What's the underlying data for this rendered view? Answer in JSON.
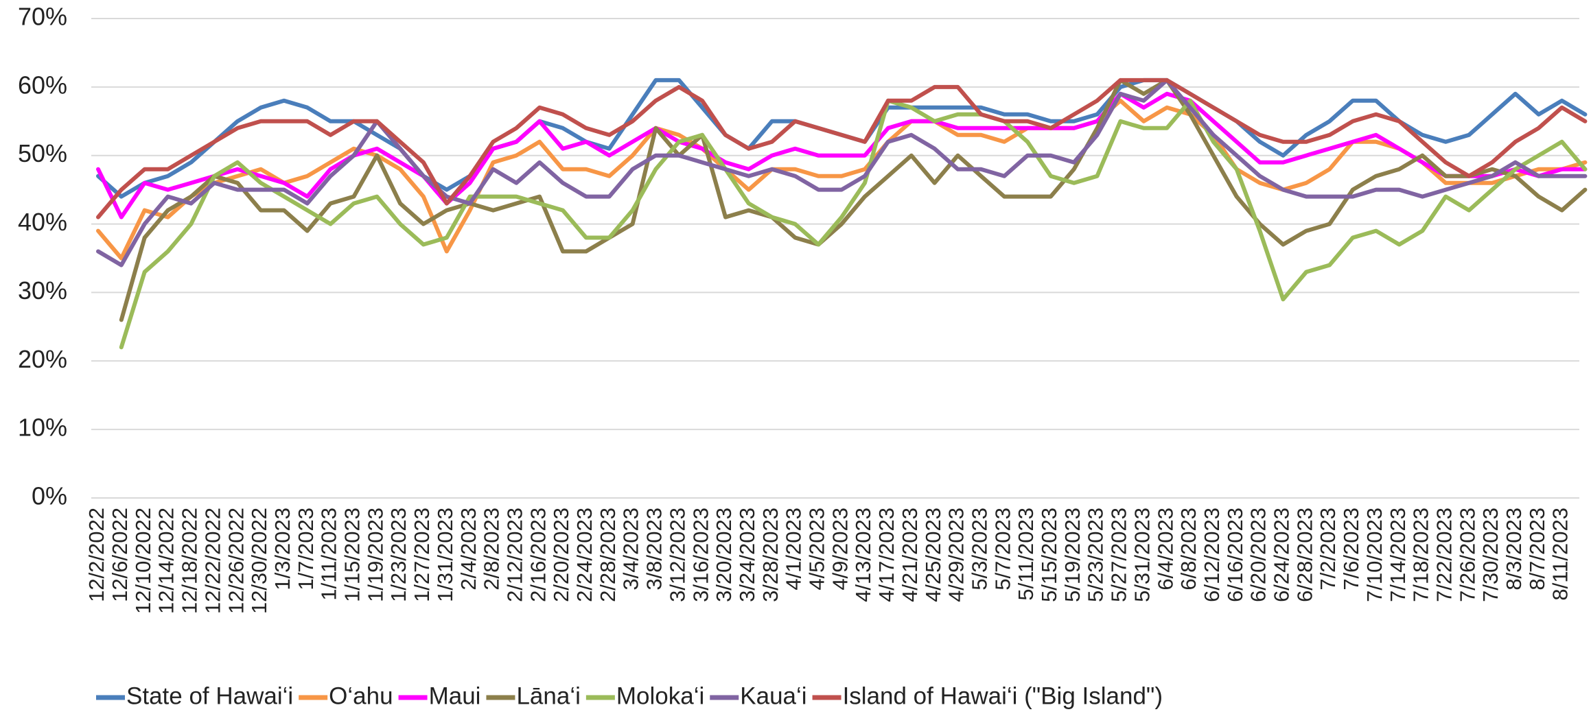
{
  "chart_data": {
    "type": "line",
    "categories": [
      "12/2/2022",
      "12/6/2022",
      "12/10/2022",
      "12/14/2022",
      "12/18/2022",
      "12/22/2022",
      "12/26/2022",
      "12/30/2022",
      "1/3/2023",
      "1/7/2023",
      "1/11/2023",
      "1/15/2023",
      "1/19/2023",
      "1/23/2023",
      "1/27/2023",
      "1/31/2023",
      "2/4/2023",
      "2/8/2023",
      "2/12/2023",
      "2/16/2023",
      "2/20/2023",
      "2/24/2023",
      "2/28/2023",
      "3/4/2023",
      "3/8/2023",
      "3/12/2023",
      "3/16/2023",
      "3/20/2023",
      "3/24/2023",
      "3/28/2023",
      "4/1/2023",
      "4/5/2023",
      "4/9/2023",
      "4/13/2023",
      "4/17/2023",
      "4/21/2023",
      "4/25/2023",
      "4/29/2023",
      "5/3/2023",
      "5/7/2023",
      "5/11/2023",
      "5/15/2023",
      "5/19/2023",
      "5/23/2023",
      "5/27/2023",
      "5/31/2023",
      "6/4/2023",
      "6/8/2023",
      "6/12/2023",
      "6/16/2023",
      "6/20/2023",
      "6/24/2023",
      "6/28/2023",
      "7/2/2023",
      "7/6/2023",
      "7/10/2023",
      "7/14/2023",
      "7/18/2023",
      "7/22/2023",
      "7/26/2023",
      "7/30/2023",
      "8/3/2023",
      "8/7/2023",
      "8/11/2023",
      null
    ],
    "series": [
      {
        "name": "State of Hawai‘i",
        "color": "#4a7ebb",
        "values": [
          47,
          44,
          46,
          47,
          49,
          52,
          55,
          57,
          58,
          57,
          55,
          55,
          53,
          51,
          47,
          45,
          47,
          51,
          52,
          55,
          54,
          52,
          51,
          56,
          61,
          61,
          57,
          53,
          51,
          55,
          55,
          54,
          53,
          52,
          57,
          57,
          57,
          57,
          57,
          56,
          56,
          55,
          55,
          56,
          60,
          61,
          61,
          59,
          57,
          55,
          52,
          50,
          53,
          55,
          58,
          58,
          55,
          53,
          52,
          53,
          56,
          59,
          56,
          58,
          56
        ]
      },
      {
        "name": "O‘ahu",
        "color": "#f79646",
        "values": [
          39,
          35,
          42,
          41,
          44,
          46,
          47,
          48,
          46,
          47,
          49,
          51,
          50,
          48,
          44,
          36,
          42,
          49,
          50,
          52,
          48,
          48,
          47,
          50,
          54,
          53,
          51,
          48,
          45,
          48,
          48,
          47,
          47,
          48,
          52,
          55,
          55,
          53,
          53,
          52,
          54,
          54,
          54,
          55,
          58,
          55,
          57,
          56,
          53,
          48,
          46,
          45,
          46,
          48,
          52,
          52,
          51,
          49,
          46,
          46,
          46,
          47,
          48,
          48,
          49
        ]
      },
      {
        "name": "Maui",
        "color": "#ff00ff",
        "values": [
          48,
          41,
          46,
          45,
          46,
          47,
          48,
          47,
          46,
          44,
          48,
          50,
          51,
          49,
          47,
          43,
          46,
          51,
          52,
          55,
          51,
          52,
          50,
          52,
          54,
          52,
          51,
          49,
          48,
          50,
          51,
          50,
          50,
          50,
          54,
          55,
          55,
          54,
          54,
          54,
          54,
          54,
          54,
          55,
          59,
          57,
          59,
          58,
          55,
          52,
          49,
          49,
          50,
          51,
          52,
          53,
          51,
          49,
          47,
          47,
          47,
          48,
          47,
          48,
          48
        ]
      },
      {
        "name": "Lāna‘i",
        "color": "#8c7f4b",
        "values": [
          null,
          26,
          38,
          42,
          44,
          47,
          46,
          42,
          42,
          39,
          43,
          44,
          50,
          43,
          40,
          42,
          43,
          42,
          43,
          44,
          36,
          36,
          38,
          40,
          54,
          50,
          53,
          41,
          42,
          41,
          38,
          37,
          40,
          44,
          47,
          50,
          46,
          50,
          47,
          44,
          44,
          44,
          48,
          54,
          61,
          59,
          61,
          56,
          50,
          44,
          40,
          37,
          39,
          40,
          45,
          47,
          48,
          50,
          47,
          47,
          48,
          47,
          44,
          42,
          45
        ]
      },
      {
        "name": "Moloka‘i",
        "color": "#9bbb59",
        "values": [
          null,
          22,
          33,
          36,
          40,
          47,
          49,
          46,
          44,
          42,
          40,
          43,
          44,
          40,
          37,
          38,
          44,
          44,
          44,
          43,
          42,
          38,
          38,
          42,
          48,
          52,
          53,
          48,
          43,
          41,
          40,
          37,
          41,
          46,
          58,
          57,
          55,
          56,
          56,
          55,
          52,
          47,
          46,
          47,
          55,
          54,
          54,
          58,
          52,
          48,
          39,
          29,
          33,
          34,
          38,
          39,
          37,
          39,
          44,
          42,
          45,
          48,
          50,
          52,
          48
        ]
      },
      {
        "name": "Kaua‘i",
        "color": "#8064a2",
        "values": [
          36,
          34,
          40,
          44,
          43,
          46,
          45,
          45,
          45,
          43,
          47,
          50,
          55,
          51,
          47,
          44,
          43,
          48,
          46,
          49,
          46,
          44,
          44,
          48,
          50,
          50,
          49,
          48,
          47,
          48,
          47,
          45,
          45,
          47,
          52,
          53,
          51,
          48,
          48,
          47,
          50,
          50,
          49,
          53,
          59,
          58,
          61,
          57,
          53,
          50,
          47,
          45,
          44,
          44,
          44,
          45,
          45,
          44,
          45,
          46,
          47,
          49,
          47,
          47,
          47
        ]
      },
      {
        "name": "Island of Hawai‘i (\"Big Island\")",
        "color": "#c0504d",
        "values": [
          41,
          45,
          48,
          48,
          50,
          52,
          54,
          55,
          55,
          55,
          53,
          55,
          55,
          52,
          49,
          43,
          47,
          52,
          54,
          57,
          56,
          54,
          53,
          55,
          58,
          60,
          58,
          53,
          51,
          52,
          55,
          54,
          53,
          52,
          58,
          58,
          60,
          60,
          56,
          55,
          55,
          54,
          56,
          58,
          61,
          61,
          61,
          59,
          57,
          55,
          53,
          52,
          52,
          53,
          55,
          56,
          55,
          52,
          49,
          47,
          49,
          52,
          54,
          57,
          55
        ]
      }
    ],
    "ylim": [
      0,
      70
    ],
    "yticks": [
      {
        "value": 0,
        "label": "0%"
      },
      {
        "value": 10,
        "label": "10%"
      },
      {
        "value": 20,
        "label": "20%"
      },
      {
        "value": 30,
        "label": "30%"
      },
      {
        "value": 40,
        "label": "40%"
      },
      {
        "value": 50,
        "label": "50%"
      },
      {
        "value": 60,
        "label": "60%"
      },
      {
        "value": 70,
        "label": "70%"
      }
    ],
    "grid": true,
    "legend": "bottom"
  }
}
